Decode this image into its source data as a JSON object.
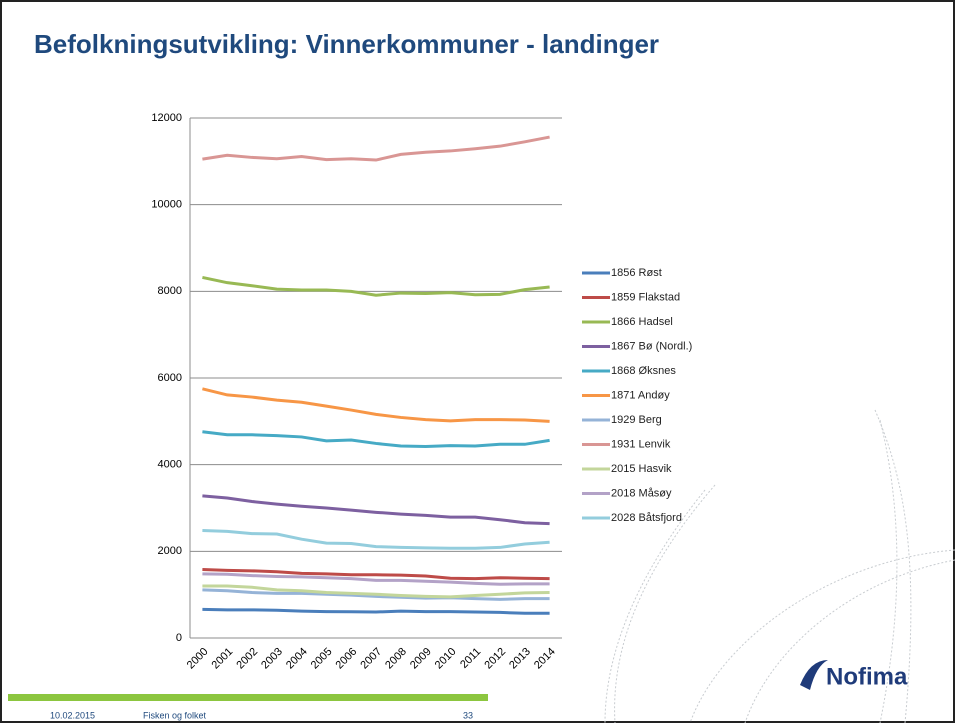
{
  "chart_data": {
    "type": "line",
    "title": "Befolkningsutvikling: Vinnerkommuner - landinger",
    "categories": [
      "2000",
      "2001",
      "2002",
      "2003",
      "2004",
      "2005",
      "2006",
      "2007",
      "2008",
      "2009",
      "2010",
      "2011",
      "2012",
      "2013",
      "2014"
    ],
    "ylim": [
      0,
      12000
    ],
    "yticks": [
      0,
      2000,
      4000,
      6000,
      8000,
      10000,
      12000
    ],
    "grid": true,
    "legend": "right",
    "series": [
      {
        "name": "1856 Røst",
        "color": "#4a7ebb",
        "values": [
          660,
          650,
          650,
          640,
          620,
          610,
          605,
          600,
          620,
          610,
          610,
          600,
          590,
          570,
          570
        ]
      },
      {
        "name": "1859 Flakstad",
        "color": "#be4b48",
        "values": [
          1580,
          1560,
          1550,
          1530,
          1490,
          1480,
          1460,
          1460,
          1450,
          1430,
          1380,
          1370,
          1390,
          1380,
          1370
        ]
      },
      {
        "name": "1866 Hadsel",
        "color": "#98b954",
        "values": [
          8320,
          8200,
          8130,
          8050,
          8030,
          8030,
          8000,
          7910,
          7960,
          7950,
          7970,
          7920,
          7930,
          8040,
          8100
        ]
      },
      {
        "name": "1867 Bø (Nordl.)",
        "color": "#7d60a0",
        "values": [
          3280,
          3230,
          3150,
          3090,
          3040,
          3000,
          2950,
          2900,
          2860,
          2830,
          2790,
          2790,
          2730,
          2660,
          2640
        ]
      },
      {
        "name": "1868 Øksnes",
        "color": "#46aac5",
        "values": [
          4760,
          4690,
          4690,
          4670,
          4640,
          4550,
          4570,
          4490,
          4430,
          4420,
          4440,
          4430,
          4470,
          4470,
          4560
        ]
      },
      {
        "name": "1871 Andøy",
        "color": "#f79646",
        "values": [
          5750,
          5610,
          5560,
          5490,
          5440,
          5350,
          5260,
          5160,
          5090,
          5040,
          5010,
          5040,
          5040,
          5030,
          5000
        ]
      },
      {
        "name": "1929 Berg",
        "color": "#95b3d7",
        "values": [
          1110,
          1090,
          1050,
          1030,
          1030,
          1010,
          990,
          960,
          940,
          920,
          930,
          910,
          890,
          910,
          910
        ]
      },
      {
        "name": "1931 Lenvik",
        "color": "#d99694",
        "values": [
          11050,
          11140,
          11090,
          11060,
          11110,
          11040,
          11060,
          11030,
          11160,
          11210,
          11240,
          11290,
          11350,
          11450,
          11560
        ]
      },
      {
        "name": "2015 Hasvik",
        "color": "#c3d69b",
        "values": [
          1200,
          1200,
          1170,
          1110,
          1090,
          1050,
          1030,
          1010,
          980,
          960,
          950,
          980,
          1010,
          1040,
          1050
        ]
      },
      {
        "name": "2018 Måsøy",
        "color": "#b3a2c7",
        "values": [
          1480,
          1470,
          1440,
          1420,
          1410,
          1390,
          1370,
          1330,
          1330,
          1310,
          1290,
          1260,
          1240,
          1250,
          1250
        ]
      },
      {
        "name": "2028 Båtsfjord",
        "color": "#93cddd",
        "values": [
          2480,
          2460,
          2410,
          2400,
          2280,
          2190,
          2180,
          2110,
          2090,
          2080,
          2070,
          2070,
          2090,
          2170,
          2210
        ]
      }
    ]
  },
  "footer": {
    "date": "10.02.2015",
    "text": "Fisken og folket",
    "page": "33",
    "logo": "Nofima"
  }
}
